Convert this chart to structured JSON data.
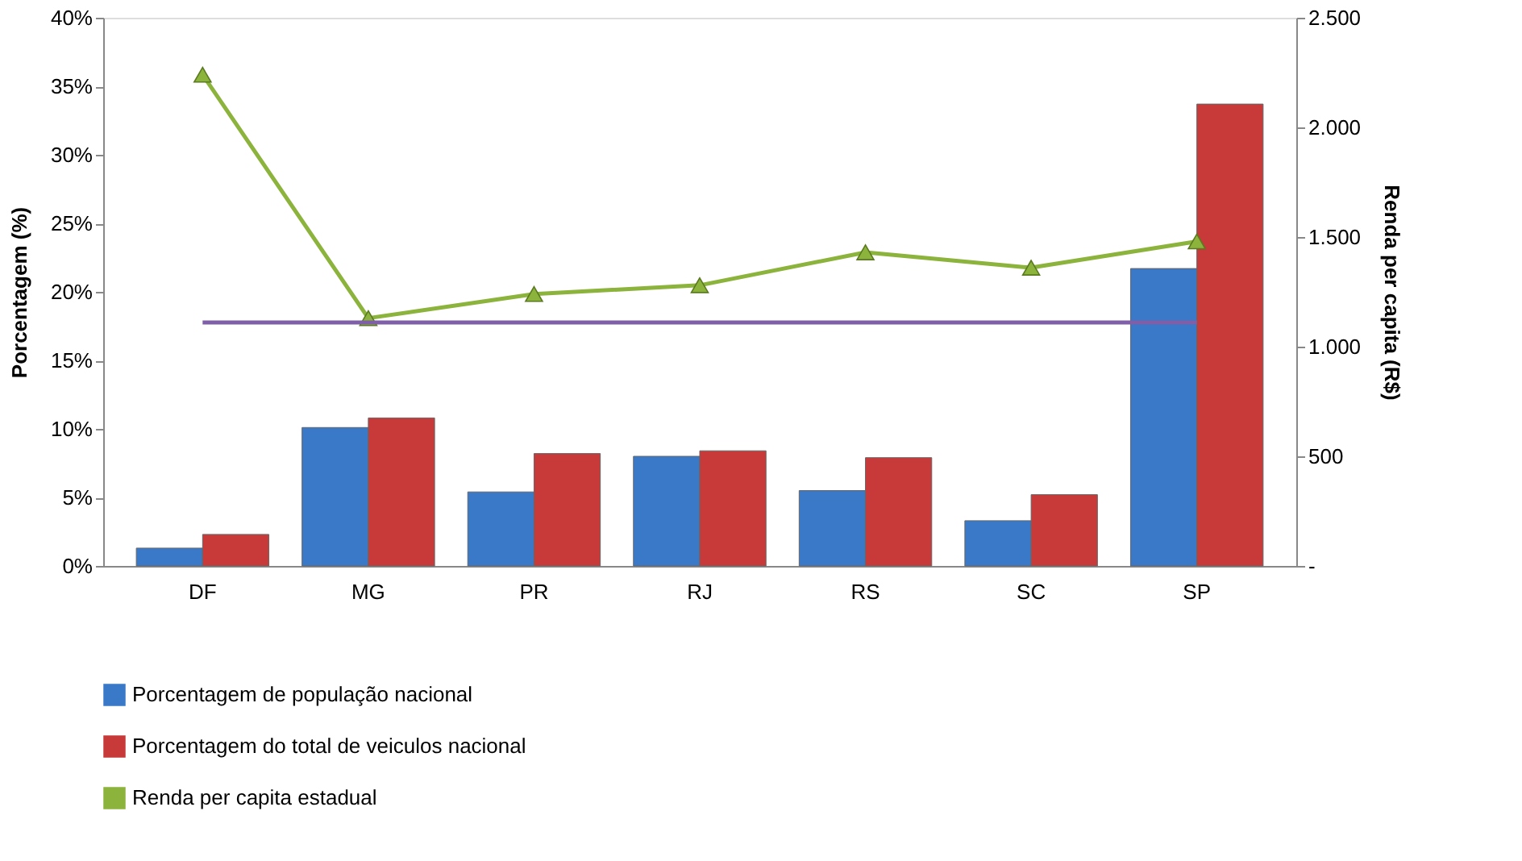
{
  "chart_data": {
    "type": "bar",
    "categories": [
      "DF",
      "MG",
      "PR",
      "RJ",
      "RS",
      "SC",
      "SP"
    ],
    "series": [
      {
        "name": "Porcentagem de população nacional",
        "color": "#3a78c8",
        "values": [
          1.3,
          10.1,
          5.4,
          8.0,
          5.5,
          3.3,
          21.7
        ]
      },
      {
        "name": "Porcentagem do total de veiculos nacional",
        "color": "#c83a3a",
        "values": [
          2.3,
          10.8,
          8.2,
          8.4,
          7.9,
          5.2,
          33.7
        ]
      },
      {
        "name": "Renda per capita estadual",
        "type": "line",
        "axis": "y2",
        "color": "#8cb33c",
        "marker": "triangle",
        "values": [
          2240,
          1130,
          1240,
          1280,
          1430,
          1360,
          1480
        ]
      },
      {
        "type": "line",
        "axis": "y2",
        "color": "#7f5fa8",
        "marker": "none",
        "values": [
          1110,
          1110,
          1110,
          1110,
          1110,
          1110,
          1110
        ]
      }
    ],
    "ylabel": "Porcentagem (%)",
    "y2label": "Renda per capita (R$)",
    "ylim": [
      0,
      40
    ],
    "yticks": [
      {
        "value": 0,
        "label": "0%"
      },
      {
        "value": 5,
        "label": "5%"
      },
      {
        "value": 10,
        "label": "10%"
      },
      {
        "value": 15,
        "label": "15%"
      },
      {
        "value": 20,
        "label": "20%"
      },
      {
        "value": 25,
        "label": "25%"
      },
      {
        "value": 30,
        "label": "30%"
      },
      {
        "value": 35,
        "label": "35%"
      },
      {
        "value": 40,
        "label": "40%"
      }
    ],
    "y2lim": [
      0,
      2500
    ],
    "y2ticks": [
      {
        "value": 0,
        "label": "-"
      },
      {
        "value": 500,
        "label": "500"
      },
      {
        "value": 1000,
        "label": "1.000"
      },
      {
        "value": 1500,
        "label": "1.500"
      },
      {
        "value": 2000,
        "label": "2.000"
      },
      {
        "value": 2500,
        "label": "2.500"
      }
    ],
    "grid": false,
    "legend": "bottom"
  }
}
